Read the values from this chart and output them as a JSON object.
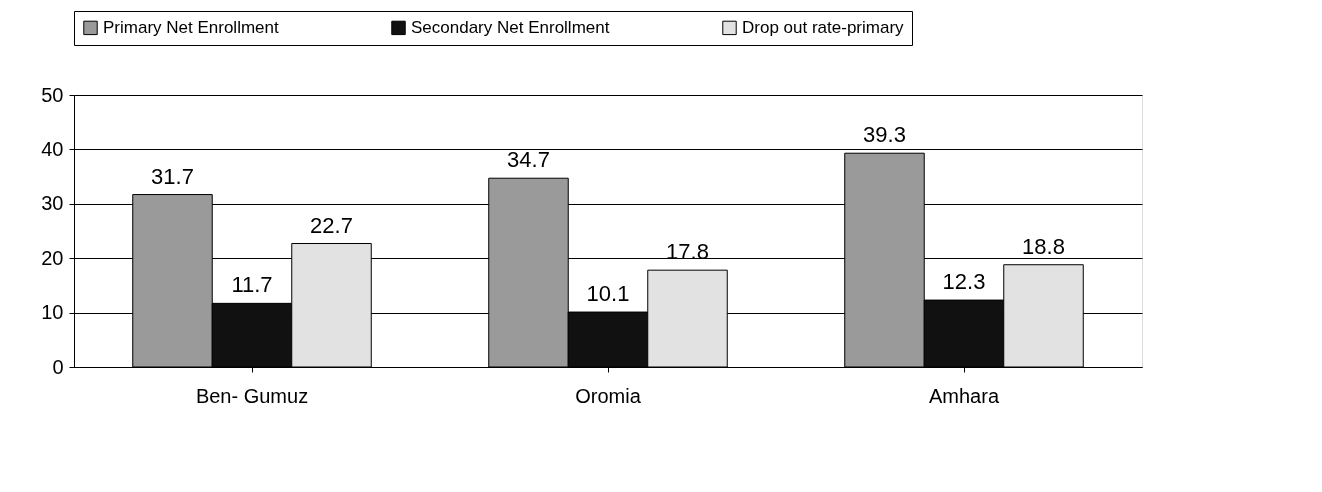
{
  "chart_data": {
    "type": "bar",
    "categories": [
      "Ben- Gumuz",
      "Oromia",
      "Amhara"
    ],
    "series": [
      {
        "name": "Primary Net Enrollment",
        "color": "#9a9a9a",
        "values": [
          31.7,
          34.7,
          39.3
        ]
      },
      {
        "name": "Secondary Net Enrollment",
        "color": "#111111",
        "values": [
          11.7,
          10.1,
          12.3
        ]
      },
      {
        "name": "Drop out rate-primary",
        "color": "#e2e2e2",
        "values": [
          22.7,
          17.8,
          18.8
        ]
      }
    ],
    "ylim": [
      0,
      50
    ],
    "yticks": [
      0,
      10,
      20,
      30,
      40,
      50
    ],
    "grid": "y",
    "legend": "top",
    "data_labels": true
  }
}
